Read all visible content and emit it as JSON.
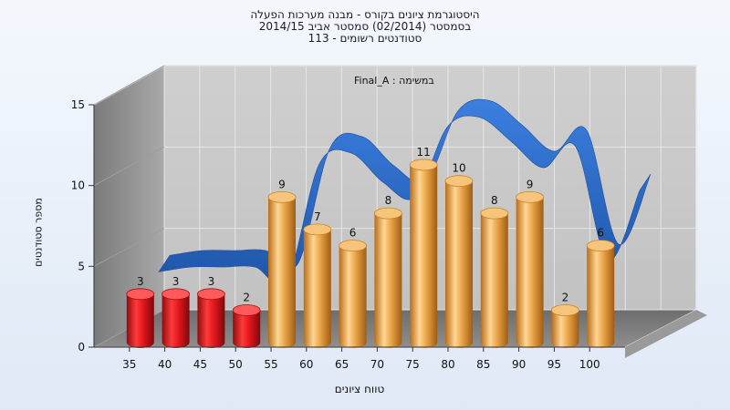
{
  "chart_data": {
    "type": "bar",
    "title_lines": [
      "היסטוגרמת ציונים בקורס - מבנה מערכות הפעלה",
      "בסמסטר  (02/2014)  סמסטר אביב 2014/15",
      "סטודנטים רשומים - 113"
    ],
    "inner_label": "במשימה : Final_A",
    "xlabel": "טווח ציונים",
    "ylabel": "מספר סטודנטים",
    "categories": [
      "35",
      "40",
      "45",
      "50",
      "55",
      "60",
      "65",
      "70",
      "75",
      "80",
      "85",
      "90",
      "95",
      "100"
    ],
    "bar_values": [
      3,
      3,
      3,
      2,
      9,
      7,
      6,
      8,
      11,
      10,
      8,
      9,
      2,
      6
    ],
    "bar_colors": [
      "#d6161e",
      "#d6161e",
      "#d6161e",
      "#d6161e",
      "#e8a64a",
      "#e8a64a",
      "#e8a64a",
      "#e8a64a",
      "#e8a64a",
      "#e8a64a",
      "#e8a64a",
      "#e8a64a",
      "#e8a64a",
      "#e8a64a"
    ],
    "trend_values": [
      3,
      3.3,
      3.3,
      3.3,
      2.5,
      9.6,
      10.3,
      8.5,
      7.6,
      11.9,
      12.5,
      11,
      9.4,
      10.7,
      3.7,
      8
    ],
    "trend_color": "#2f6fcf",
    "ylim": [
      0,
      15
    ],
    "yticks": [
      0,
      5,
      10,
      15
    ],
    "grid": true
  }
}
